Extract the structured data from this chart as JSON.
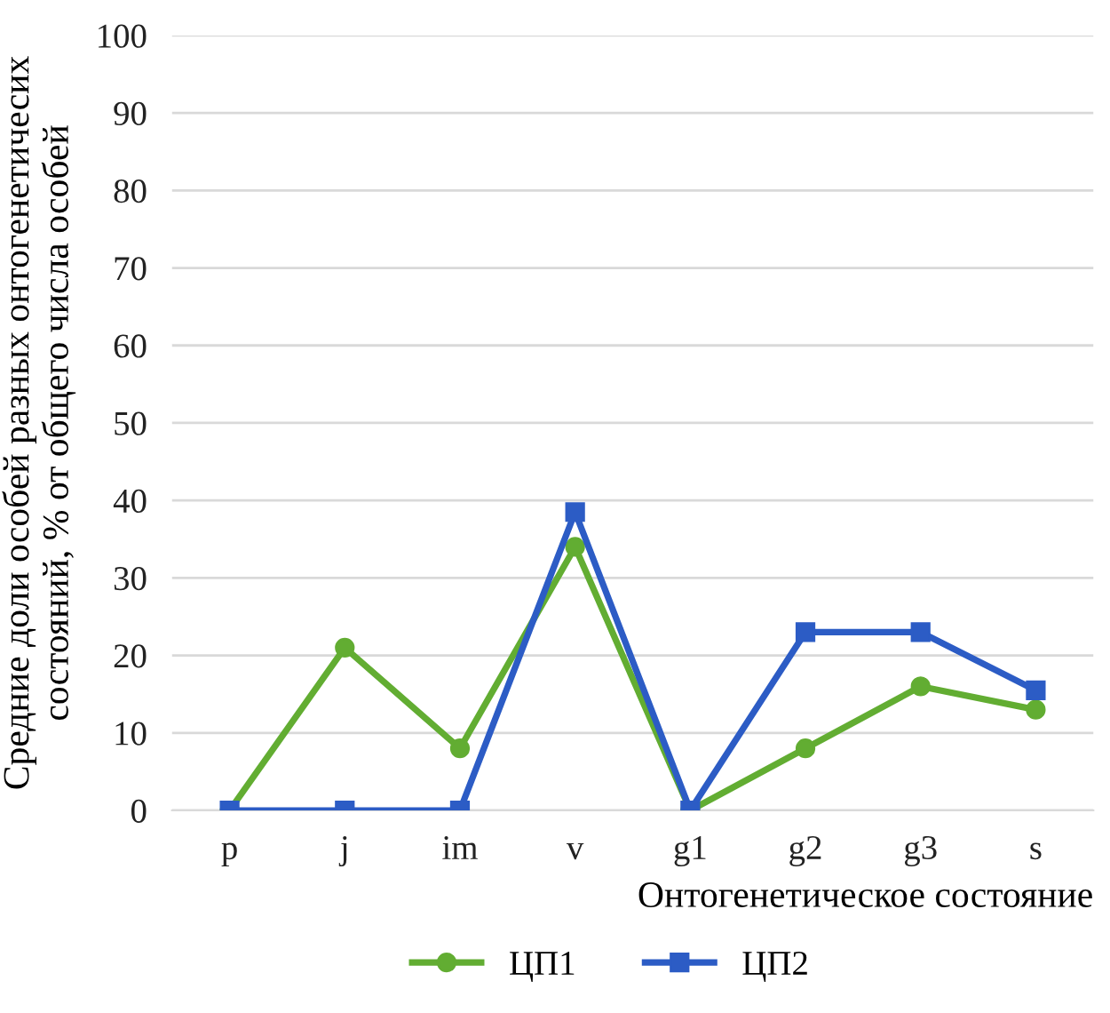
{
  "chart_data": {
    "type": "line",
    "xlabel": "Онтогенетическое состояние",
    "ylabel": "Средние доли особей разных онтогенетичесих\nсостояний, % от общего числа особей",
    "categories": [
      "p",
      "j",
      "im",
      "v",
      "g1",
      "g2",
      "g3",
      "s"
    ],
    "series": [
      {
        "name": "ЦП1",
        "color": "#62ad32",
        "marker": "circle",
        "values": [
          0,
          21,
          8,
          34,
          0,
          8,
          16,
          13
        ]
      },
      {
        "name": "ЦП2",
        "color": "#2c5cc5",
        "marker": "square",
        "values": [
          0,
          0,
          0,
          38.5,
          0,
          23,
          23,
          15.5
        ]
      }
    ],
    "ylim": [
      0,
      100
    ],
    "yticks": [
      0,
      10,
      20,
      30,
      40,
      50,
      60,
      70,
      80,
      90,
      100
    ],
    "grid": "y",
    "legend": "bottom",
    "line_style": "solid"
  }
}
